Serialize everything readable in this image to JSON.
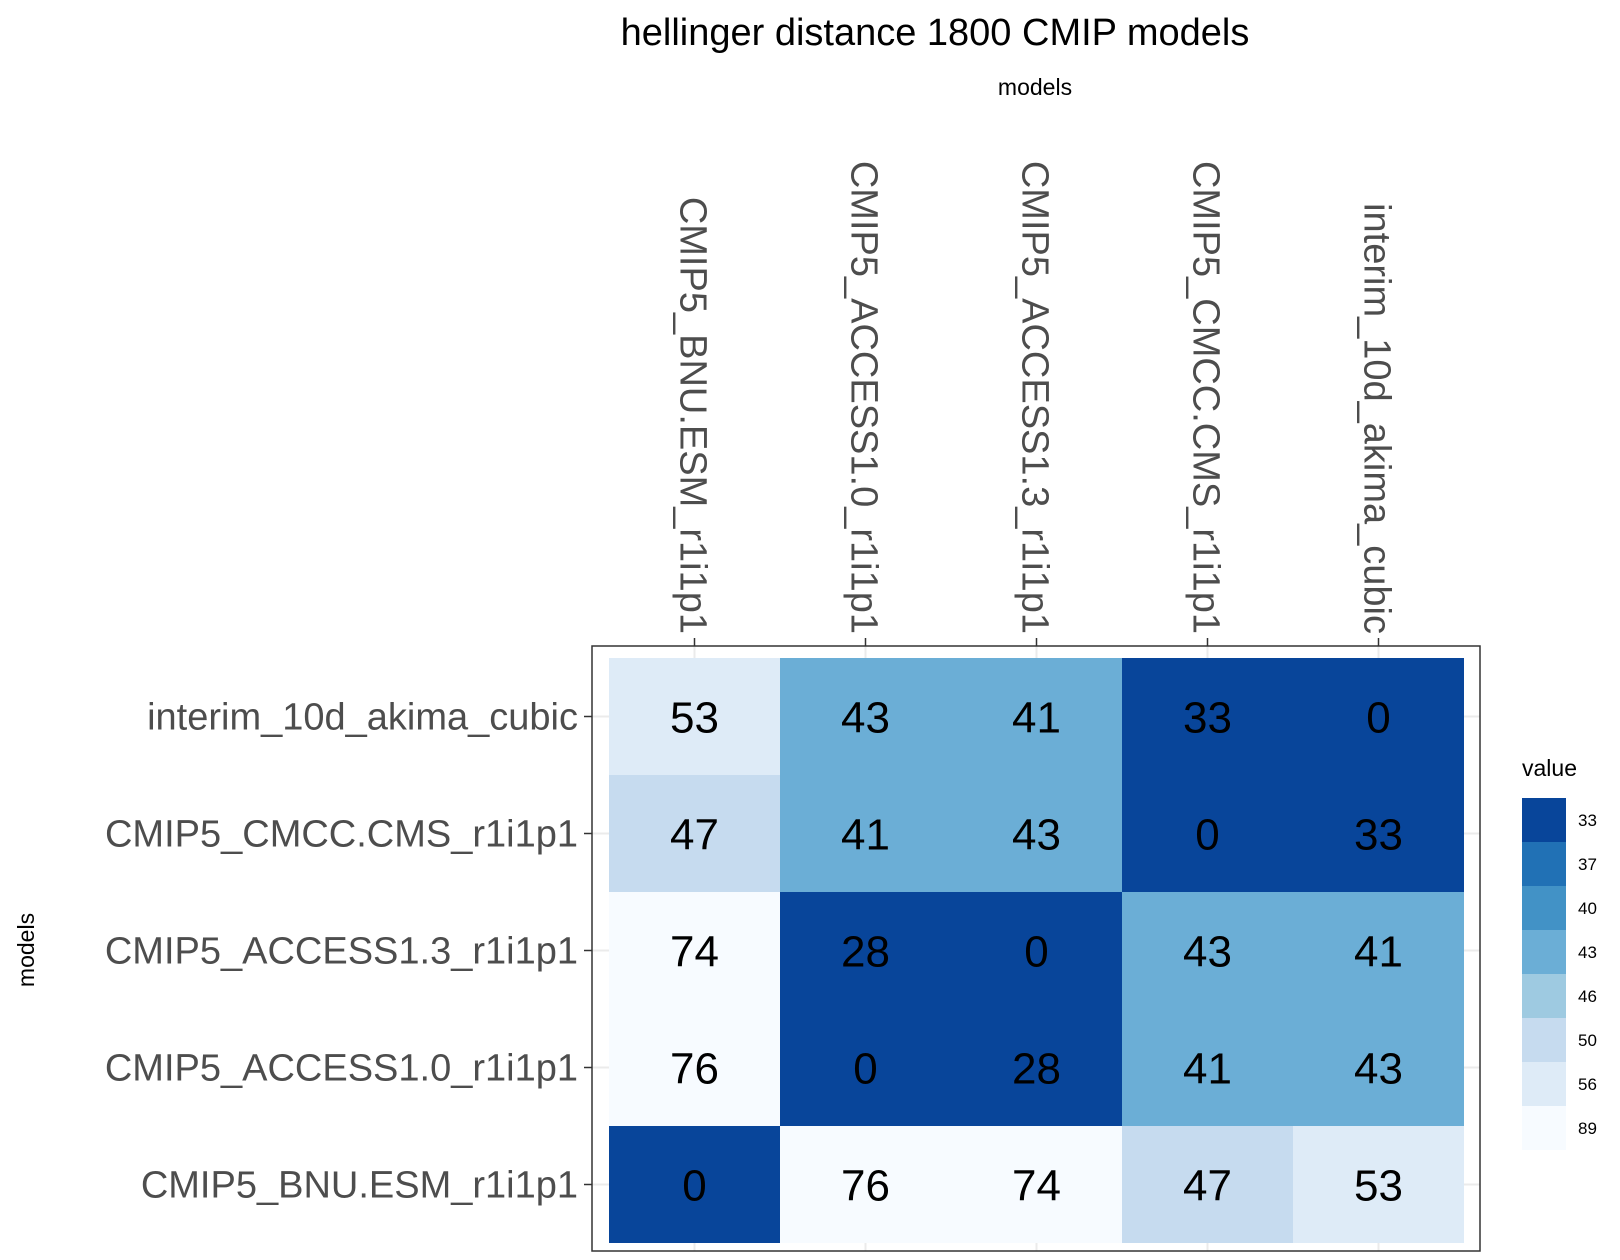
{
  "chart_data": {
    "type": "heatmap",
    "title": "hellinger distance 1800 CMIP models",
    "xlabel": "models",
    "ylabel": "models",
    "x_categories": [
      "CMIP5_BNU.ESM_r1i1p1",
      "CMIP5_ACCESS1.0_r1i1p1",
      "CMIP5_ACCESS1.3_r1i1p1",
      "CMIP5_CMCC.CMS_r1i1p1",
      "interim_10d_akima_cubic"
    ],
    "y_categories_top_to_bottom": [
      "interim_10d_akima_cubic",
      "CMIP5_CMCC.CMS_r1i1p1",
      "CMIP5_ACCESS1.3_r1i1p1",
      "CMIP5_ACCESS1.0_r1i1p1",
      "CMIP5_BNU.ESM_r1i1p1"
    ],
    "values": [
      [
        53,
        43,
        41,
        33,
        0
      ],
      [
        47,
        41,
        43,
        0,
        33
      ],
      [
        74,
        28,
        0,
        43,
        41
      ],
      [
        76,
        0,
        28,
        41,
        43
      ],
      [
        0,
        76,
        74,
        47,
        53
      ]
    ],
    "x_axis_position": "top",
    "grid": true,
    "legend": {
      "title": "value",
      "placement": "right",
      "breaks": [
        33,
        37,
        40,
        43,
        46,
        50,
        56,
        89
      ],
      "colors": [
        "#08459a",
        "#2171b5",
        "#4292c6",
        "#6baed6",
        "#9ecae1",
        "#c6dbef",
        "#deebf7",
        "#f7fbff"
      ]
    }
  }
}
